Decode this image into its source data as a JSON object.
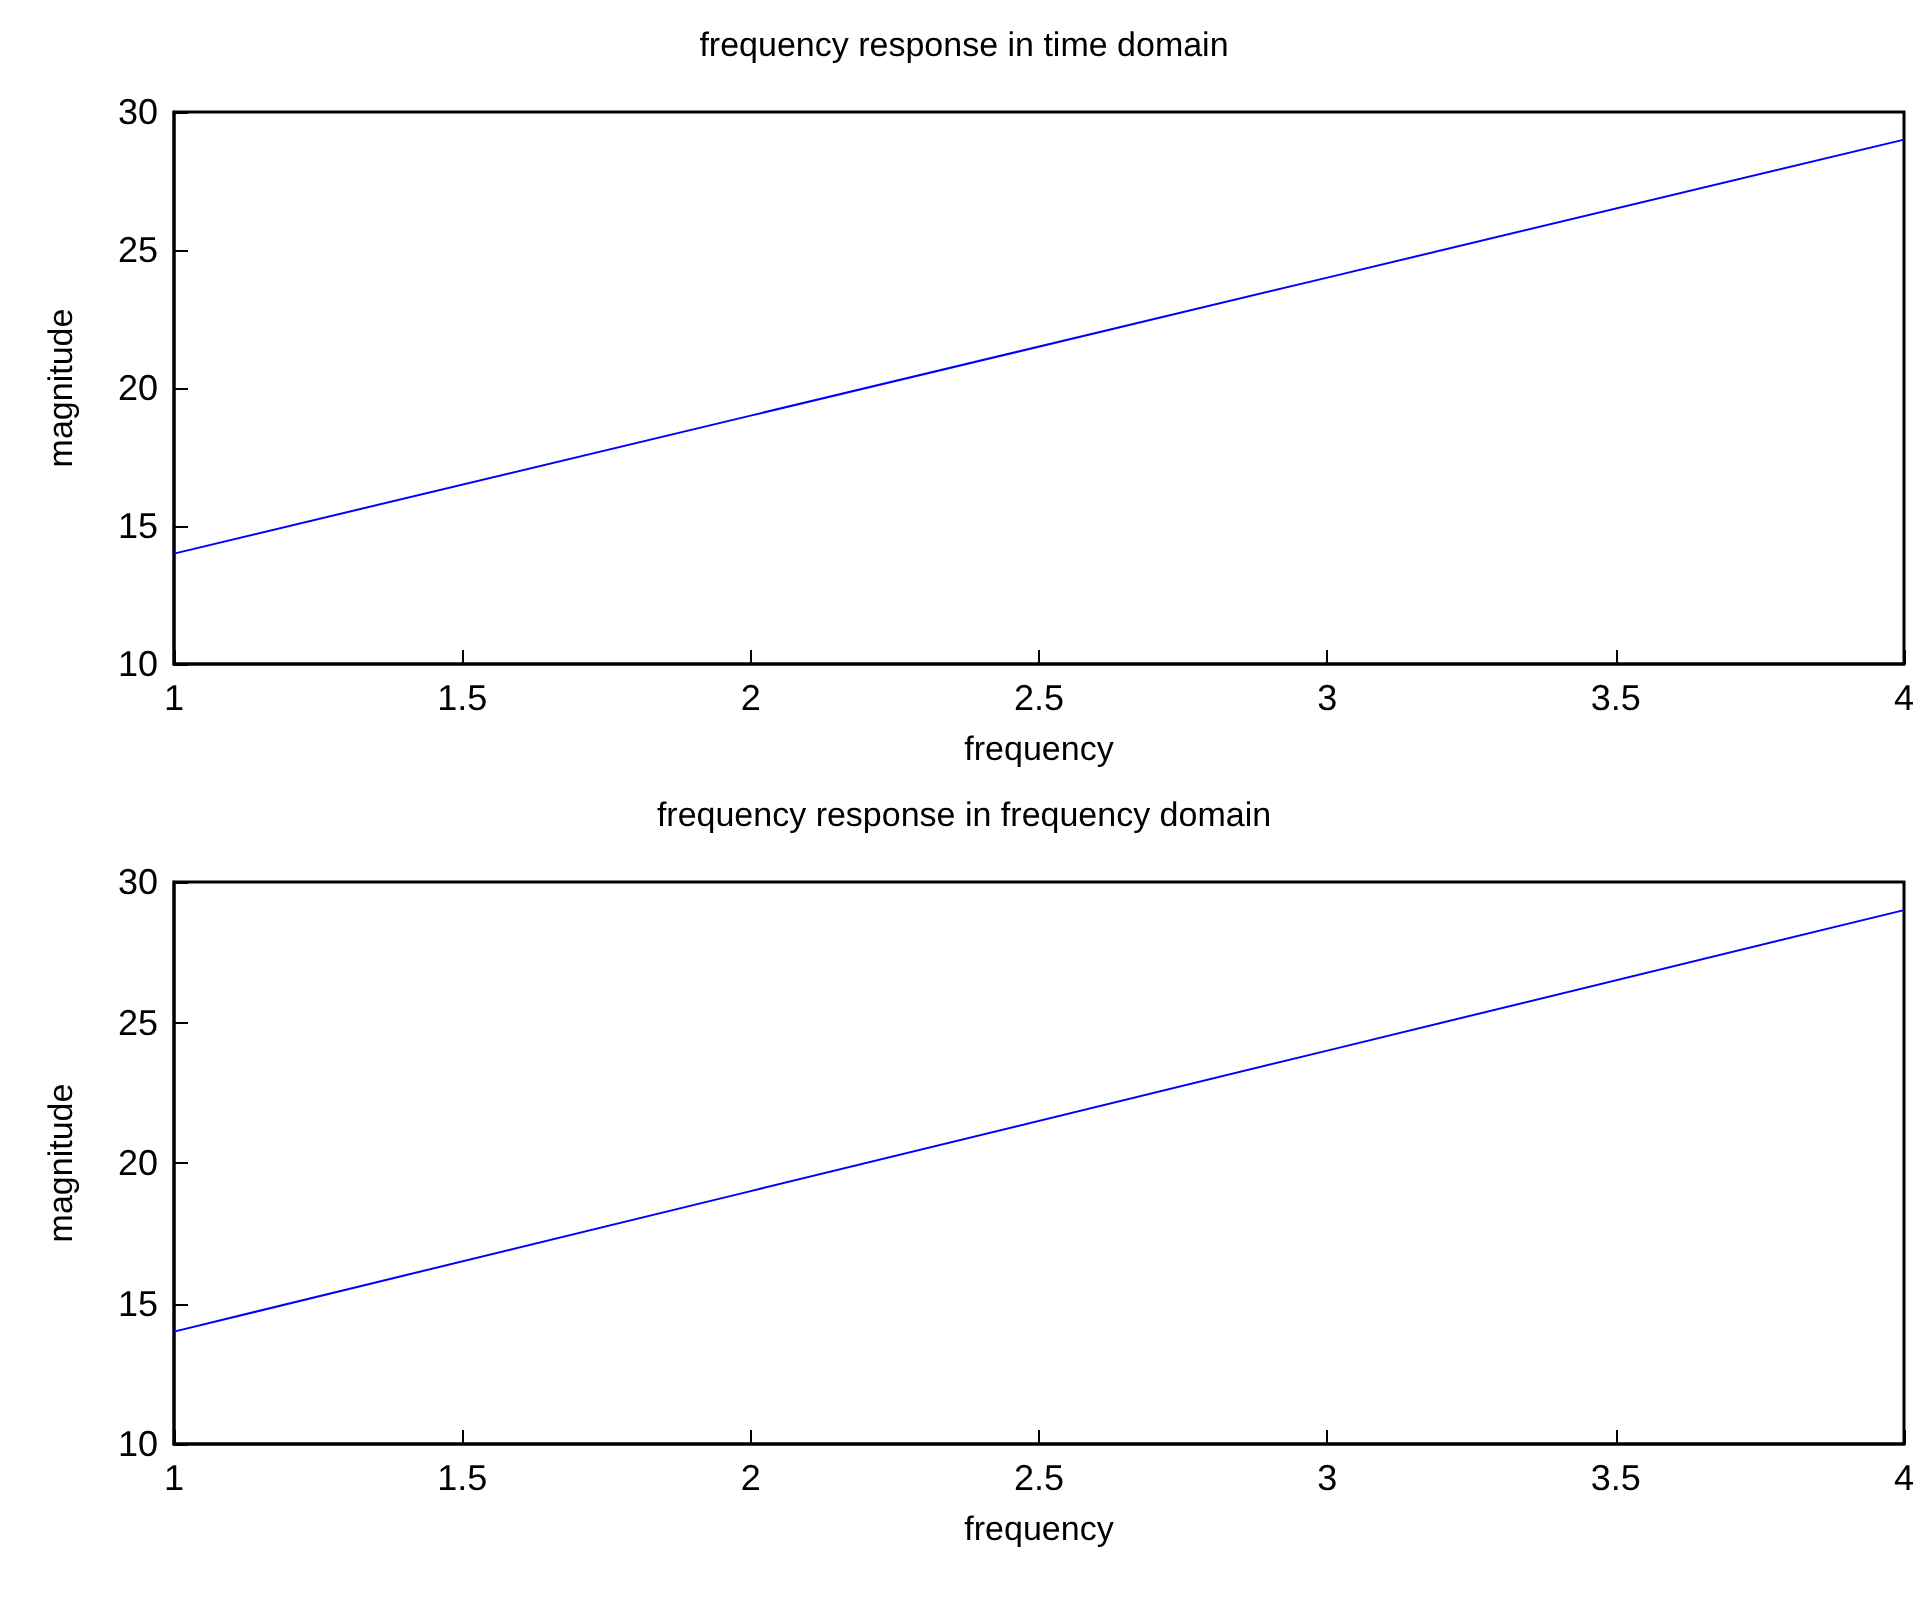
{
  "chart_data": [
    {
      "type": "line",
      "title": "frequency response in time domain",
      "xlabel": "frequency",
      "ylabel": "magnitude",
      "x": [
        1,
        2,
        3,
        4
      ],
      "series": [
        {
          "color": "#0000ff",
          "values": [
            14,
            19,
            24,
            29
          ]
        }
      ],
      "xlim": [
        1,
        4
      ],
      "xticks": [
        1,
        1.5,
        2,
        2.5,
        3,
        3.5,
        4
      ],
      "ylim": [
        10,
        30
      ],
      "yticks": [
        10,
        15,
        20,
        25,
        30
      ]
    },
    {
      "type": "line",
      "title": "frequency response in frequency domain",
      "xlabel": "frequency",
      "ylabel": "magnitude",
      "x": [
        1,
        2,
        3,
        4
      ],
      "series": [
        {
          "color": "#0000ff",
          "values": [
            14,
            19,
            24,
            29
          ]
        }
      ],
      "xlim": [
        1,
        4
      ],
      "xticks": [
        1,
        1.5,
        2,
        2.5,
        3,
        3.5,
        4
      ],
      "ylim": [
        10,
        30
      ],
      "yticks": [
        10,
        15,
        20,
        25,
        30
      ]
    }
  ]
}
